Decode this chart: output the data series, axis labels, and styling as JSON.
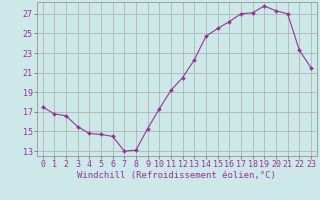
{
  "x": [
    0,
    1,
    2,
    3,
    4,
    5,
    6,
    7,
    8,
    9,
    10,
    11,
    12,
    13,
    14,
    15,
    16,
    17,
    18,
    19,
    20,
    21,
    22,
    23
  ],
  "y": [
    17.5,
    16.8,
    16.6,
    15.5,
    14.8,
    14.7,
    14.5,
    13.0,
    13.1,
    15.3,
    17.3,
    19.2,
    20.5,
    22.3,
    24.7,
    25.5,
    26.2,
    27.0,
    27.1,
    27.8,
    27.3,
    27.0,
    23.3,
    21.5
  ],
  "line_color": "#993399",
  "marker": "D",
  "marker_size": 2.0,
  "bg_color": "#cce8e8",
  "grid_color": "#aaaaaa",
  "xlabel": "Windchill (Refroidissement éolien,°C)",
  "xlabel_color": "#993399",
  "tick_color": "#993399",
  "ylabel_ticks": [
    13,
    15,
    17,
    19,
    21,
    23,
    25,
    27
  ],
  "xlim": [
    -0.5,
    23.5
  ],
  "ylim": [
    12.5,
    28.2
  ],
  "xticks": [
    0,
    1,
    2,
    3,
    4,
    5,
    6,
    7,
    8,
    9,
    10,
    11,
    12,
    13,
    14,
    15,
    16,
    17,
    18,
    19,
    20,
    21,
    22,
    23
  ],
  "xtick_labels": [
    "0",
    "1",
    "2",
    "3",
    "4",
    "5",
    "6",
    "7",
    "8",
    "9",
    "10",
    "11",
    "12",
    "13",
    "14",
    "15",
    "16",
    "17",
    "18",
    "19",
    "20",
    "21",
    "22",
    "23"
  ],
  "font_size_ticks": 6.0,
  "font_size_xlabel": 6.5
}
